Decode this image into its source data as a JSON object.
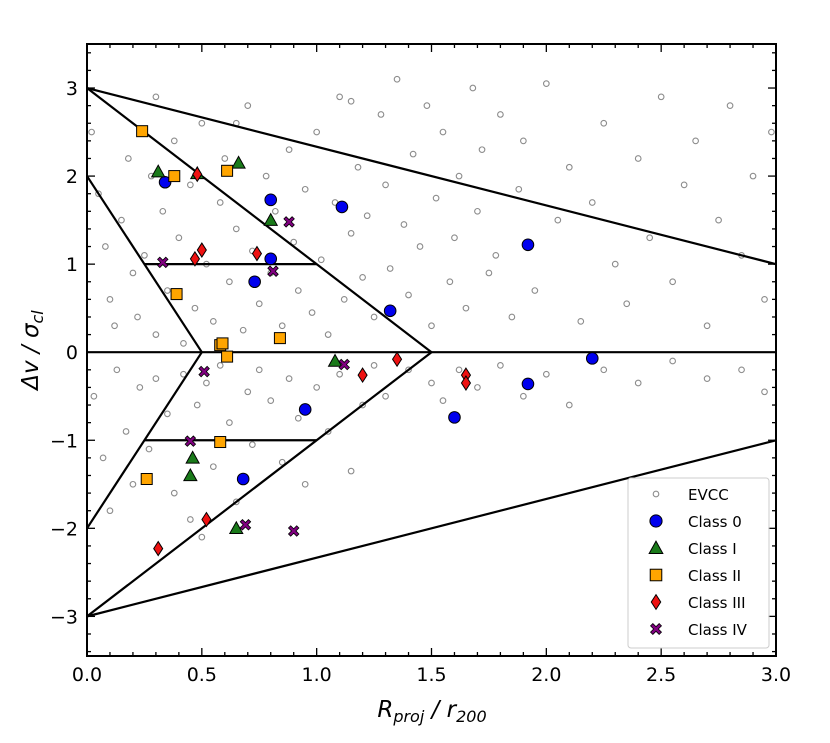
{
  "chart_data": {
    "type": "scatter",
    "title": "",
    "xlabel": {
      "main": "R",
      "sub": "proj",
      "rest": " / r",
      "rest_sub": "200"
    },
    "ylabel": {
      "main": "Δv / σ",
      "sub": "cl"
    },
    "xlim": [
      0,
      3
    ],
    "ylim": [
      -3.45,
      3.5
    ],
    "x_ticks": [
      0,
      0.5,
      1,
      1.5,
      2,
      2.5,
      3
    ],
    "x_tick_labels": [
      "0.0",
      "0.5",
      "1.0",
      "1.5",
      "2.0",
      "2.5",
      "3.0"
    ],
    "y_ticks": [
      -3,
      -2,
      -1,
      0,
      1,
      2,
      3
    ],
    "y_tick_labels": [
      "−3",
      "−2",
      "−1",
      "0",
      "1",
      "2",
      "3"
    ],
    "legend_position": "bottom-right",
    "colors": {
      "evcc": "#8c8c8c",
      "class0": "#0000ee",
      "class1": "#1a7a1a",
      "class2": "#ffa500",
      "class3": "#ee1111",
      "class4": "#800080"
    },
    "region_lines": [
      {
        "x": [
          0,
          3
        ],
        "y": [
          3,
          1
        ]
      },
      {
        "x": [
          0,
          3
        ],
        "y": [
          -3,
          -1
        ]
      },
      {
        "x": [
          0,
          1.5
        ],
        "y": [
          3,
          0
        ]
      },
      {
        "x": [
          0,
          1.5
        ],
        "y": [
          -3,
          0
        ]
      },
      {
        "x": [
          0,
          0.5
        ],
        "y": [
          2,
          0
        ]
      },
      {
        "x": [
          0,
          0.5
        ],
        "y": [
          -2,
          0
        ]
      },
      {
        "x": [
          0.25,
          1.0
        ],
        "y": [
          1,
          1
        ]
      },
      {
        "x": [
          0.25,
          1.0
        ],
        "y": [
          -1,
          -1
        ]
      },
      {
        "x": [
          0,
          3
        ],
        "y": [
          0,
          0
        ]
      }
    ],
    "series": [
      {
        "name": "EVCC",
        "marker": "open-circle",
        "points": [
          [
            0.02,
            2.5
          ],
          [
            0.05,
            1.8
          ],
          [
            0.08,
            1.2
          ],
          [
            0.1,
            0.6
          ],
          [
            0.12,
            0.3
          ],
          [
            0.15,
            1.5
          ],
          [
            0.18,
            2.2
          ],
          [
            0.2,
            0.9
          ],
          [
            0.22,
            0.4
          ],
          [
            0.25,
            1.1
          ],
          [
            0.28,
            2.0
          ],
          [
            0.3,
            0.2
          ],
          [
            0.33,
            1.6
          ],
          [
            0.35,
            0.7
          ],
          [
            0.38,
            2.4
          ],
          [
            0.4,
            1.3
          ],
          [
            0.42,
            0.1
          ],
          [
            0.45,
            1.9
          ],
          [
            0.47,
            0.5
          ],
          [
            0.5,
            2.6
          ],
          [
            0.52,
            1.0
          ],
          [
            0.55,
            0.35
          ],
          [
            0.58,
            1.7
          ],
          [
            0.6,
            2.2
          ],
          [
            0.62,
            0.8
          ],
          [
            0.65,
            1.4
          ],
          [
            0.68,
            0.25
          ],
          [
            0.7,
            2.8
          ],
          [
            0.72,
            1.15
          ],
          [
            0.75,
            0.55
          ],
          [
            0.78,
            2.0
          ],
          [
            0.8,
            0.9
          ],
          [
            0.82,
            1.6
          ],
          [
            0.85,
            0.3
          ],
          [
            0.88,
            2.3
          ],
          [
            0.9,
            1.25
          ],
          [
            0.92,
            0.7
          ],
          [
            0.95,
            1.85
          ],
          [
            0.98,
            0.45
          ],
          [
            1.0,
            2.5
          ],
          [
            1.02,
            1.05
          ],
          [
            1.05,
            0.2
          ],
          [
            1.08,
            1.7
          ],
          [
            1.1,
            2.9
          ],
          [
            1.12,
            0.6
          ],
          [
            1.15,
            1.35
          ],
          [
            1.18,
            2.1
          ],
          [
            1.2,
            0.85
          ],
          [
            1.22,
            1.55
          ],
          [
            1.25,
            0.4
          ],
          [
            1.28,
            2.7
          ],
          [
            1.3,
            1.9
          ],
          [
            1.32,
            0.95
          ],
          [
            1.35,
            3.1
          ],
          [
            1.38,
            1.45
          ],
          [
            1.4,
            0.65
          ],
          [
            1.42,
            2.25
          ],
          [
            1.45,
            1.2
          ],
          [
            1.48,
            2.8
          ],
          [
            1.5,
            0.3
          ],
          [
            1.52,
            1.75
          ],
          [
            1.55,
            2.5
          ],
          [
            1.58,
            0.8
          ],
          [
            1.6,
            1.3
          ],
          [
            1.62,
            2.0
          ],
          [
            1.65,
            0.5
          ],
          [
            1.68,
            3.0
          ],
          [
            1.7,
            1.6
          ],
          [
            1.72,
            2.3
          ],
          [
            1.75,
            0.9
          ],
          [
            1.78,
            1.1
          ],
          [
            1.8,
            2.7
          ],
          [
            1.85,
            0.4
          ],
          [
            1.88,
            1.85
          ],
          [
            1.9,
            2.4
          ],
          [
            1.95,
            0.7
          ],
          [
            2.0,
            3.05
          ],
          [
            2.05,
            1.5
          ],
          [
            2.1,
            2.1
          ],
          [
            2.15,
            0.35
          ],
          [
            2.2,
            1.7
          ],
          [
            2.25,
            2.6
          ],
          [
            2.3,
            1.0
          ],
          [
            2.35,
            0.55
          ],
          [
            2.4,
            2.2
          ],
          [
            2.45,
            1.3
          ],
          [
            2.5,
            2.9
          ],
          [
            2.55,
            0.8
          ],
          [
            2.6,
            1.9
          ],
          [
            2.65,
            2.4
          ],
          [
            2.7,
            0.3
          ],
          [
            2.75,
            1.5
          ],
          [
            2.8,
            2.8
          ],
          [
            2.85,
            1.1
          ],
          [
            2.9,
            2.0
          ],
          [
            2.95,
            0.6
          ],
          [
            2.98,
            2.5
          ],
          [
            0.3,
            2.9
          ],
          [
            0.65,
            2.6
          ],
          [
            1.15,
            2.85
          ],
          [
            0.03,
            -0.5
          ],
          [
            0.07,
            -1.2
          ],
          [
            0.1,
            -1.8
          ],
          [
            0.13,
            -0.2
          ],
          [
            0.17,
            -0.9
          ],
          [
            0.2,
            -1.5
          ],
          [
            0.23,
            -0.4
          ],
          [
            0.27,
            -1.1
          ],
          [
            0.3,
            -0.3
          ],
          [
            0.35,
            -0.7
          ],
          [
            0.38,
            -1.6
          ],
          [
            0.42,
            -0.25
          ],
          [
            0.45,
            -1.9
          ],
          [
            0.48,
            -0.6
          ],
          [
            0.52,
            -0.35
          ],
          [
            0.55,
            -1.3
          ],
          [
            0.58,
            -0.15
          ],
          [
            0.62,
            -0.8
          ],
          [
            0.65,
            -1.7
          ],
          [
            0.7,
            -0.45
          ],
          [
            0.72,
            -1.05
          ],
          [
            0.75,
            -0.2
          ],
          [
            0.8,
            -0.55
          ],
          [
            0.85,
            -1.25
          ],
          [
            0.88,
            -0.3
          ],
          [
            0.92,
            -0.75
          ],
          [
            0.95,
            -1.5
          ],
          [
            1.0,
            -0.4
          ],
          [
            1.05,
            -0.9
          ],
          [
            1.1,
            -0.25
          ],
          [
            1.15,
            -1.35
          ],
          [
            1.2,
            -0.6
          ],
          [
            1.25,
            -0.15
          ],
          [
            1.3,
            -0.5
          ],
          [
            1.4,
            -0.2
          ],
          [
            1.5,
            -0.35
          ],
          [
            1.55,
            -0.55
          ],
          [
            1.62,
            -0.2
          ],
          [
            1.7,
            -0.4
          ],
          [
            1.8,
            -0.15
          ],
          [
            1.9,
            -0.5
          ],
          [
            2.0,
            -0.25
          ],
          [
            2.1,
            -0.6
          ],
          [
            2.25,
            -0.2
          ],
          [
            2.4,
            -0.35
          ],
          [
            2.55,
            -0.1
          ],
          [
            2.7,
            -0.3
          ],
          [
            2.85,
            -0.2
          ],
          [
            2.95,
            -0.45
          ],
          [
            0.5,
            -2.1
          ]
        ]
      },
      {
        "name": "Class 0",
        "marker": "circle",
        "points": [
          [
            0.34,
            1.93
          ],
          [
            0.8,
            1.73
          ],
          [
            1.11,
            1.65
          ],
          [
            0.8,
            1.06
          ],
          [
            0.73,
            0.8
          ],
          [
            1.92,
            1.22
          ],
          [
            1.32,
            0.47
          ],
          [
            2.2,
            -0.07
          ],
          [
            1.92,
            -0.36
          ],
          [
            0.95,
            -0.65
          ],
          [
            1.6,
            -0.74
          ],
          [
            0.68,
            -1.44
          ]
        ]
      },
      {
        "name": "Class I",
        "marker": "triangle",
        "points": [
          [
            0.31,
            2.05
          ],
          [
            0.48,
            2.03
          ],
          [
            0.66,
            2.15
          ],
          [
            0.8,
            1.5
          ],
          [
            1.08,
            -0.1
          ],
          [
            0.46,
            -1.2
          ],
          [
            0.45,
            -1.4
          ],
          [
            0.65,
            -2.0
          ]
        ]
      },
      {
        "name": "Class II",
        "marker": "square",
        "points": [
          [
            0.24,
            2.51
          ],
          [
            0.38,
            2.0
          ],
          [
            0.61,
            2.06
          ],
          [
            0.39,
            0.66
          ],
          [
            0.58,
            0.08
          ],
          [
            0.59,
            0.1
          ],
          [
            0.84,
            0.16
          ],
          [
            0.61,
            -0.05
          ],
          [
            0.58,
            -1.02
          ],
          [
            0.26,
            -1.44
          ]
        ]
      },
      {
        "name": "Class III",
        "marker": "diamond",
        "points": [
          [
            0.48,
            2.02
          ],
          [
            0.5,
            1.16
          ],
          [
            0.47,
            1.06
          ],
          [
            0.74,
            1.12
          ],
          [
            1.35,
            -0.08
          ],
          [
            1.2,
            -0.26
          ],
          [
            1.65,
            -0.26
          ],
          [
            1.65,
            -0.35
          ],
          [
            0.52,
            -1.9
          ],
          [
            0.31,
            -2.23
          ]
        ]
      },
      {
        "name": "Class IV",
        "marker": "x",
        "points": [
          [
            0.88,
            1.48
          ],
          [
            0.33,
            1.02
          ],
          [
            0.81,
            0.92
          ],
          [
            1.12,
            -0.14
          ],
          [
            0.51,
            -0.22
          ],
          [
            0.45,
            -1.01
          ],
          [
            0.69,
            -1.96
          ],
          [
            0.9,
            -2.03
          ]
        ]
      }
    ],
    "legend": [
      "EVCC",
      "Class 0",
      "Class I",
      "Class II",
      "Class III",
      "Class IV"
    ]
  }
}
